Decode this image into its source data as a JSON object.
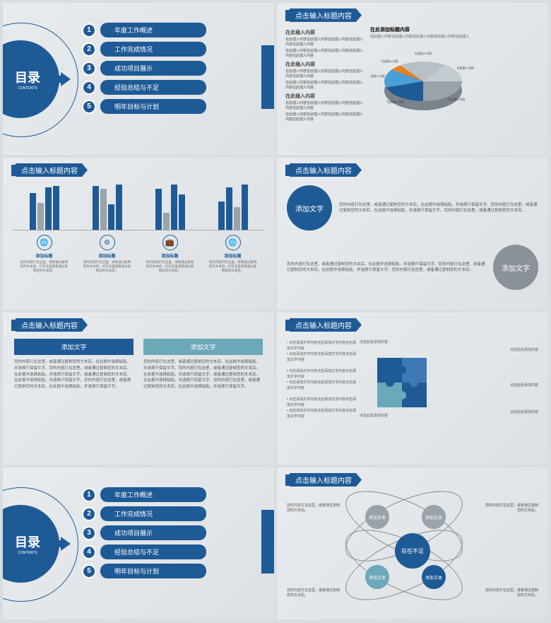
{
  "colors": {
    "primary": "#1e5a96",
    "gray": "#9aa2aa",
    "teal": "#6ba8b8",
    "lightblue": "#4a9fd8",
    "orange": "#e67e22",
    "bg": "#e8ebed"
  },
  "toc": {
    "title": "目录",
    "subtitle": "CONTENTS",
    "items": [
      {
        "num": "1",
        "label": "年度工作概述"
      },
      {
        "num": "2",
        "label": "工作完成情况"
      },
      {
        "num": "3",
        "label": "成功项目展示"
      },
      {
        "num": "4",
        "label": "经验总结与不足"
      },
      {
        "num": "5",
        "label": "明年目标与计划"
      }
    ]
  },
  "slide_title": "点击输入标题内容",
  "pie": {
    "left_title": "在此插入内容",
    "left_para": "在此插入内容在此插入内容在此插入内容在此插入内容在此插入内容",
    "right_title": "在此添加标题内容",
    "right_sub": "在此插入内容在此插入内容在此插入内容在此插入内容在此插入",
    "slices": [
      {
        "label": "在此插入内容",
        "color": "#9aa2aa",
        "value": 25
      },
      {
        "label": "在此插入内容",
        "color": "#1e5a96",
        "value": 20
      },
      {
        "label": "在此插入内容",
        "color": "#4a9fd8",
        "value": 15
      },
      {
        "label": "在此插入内容",
        "color": "#e67e22",
        "value": 5
      },
      {
        "label": "在此插入内容",
        "color": "#b8bfc5",
        "value": 20
      },
      {
        "label": "在此插入内容",
        "color": "#c5ccd1",
        "value": 15
      }
    ]
  },
  "bars": {
    "groups": [
      [
        {
          "h": 52,
          "c": "#1e5a96"
        },
        {
          "h": 38,
          "c": "#9aa2aa"
        },
        {
          "h": 60,
          "c": "#1e5a96"
        },
        {
          "h": 62,
          "c": "#1e5a96"
        }
      ],
      [
        {
          "h": 62,
          "c": "#1e5a96"
        },
        {
          "h": 58,
          "c": "#9aa2aa"
        },
        {
          "h": 36,
          "c": "#1e5a96"
        },
        {
          "h": 64,
          "c": "#1e5a96"
        }
      ],
      [
        {
          "h": 58,
          "c": "#1e5a96"
        },
        {
          "h": 24,
          "c": "#9aa2aa"
        },
        {
          "h": 64,
          "c": "#1e5a96"
        },
        {
          "h": 50,
          "c": "#1e5a96"
        }
      ],
      [
        {
          "h": 40,
          "c": "#1e5a96"
        },
        {
          "h": 60,
          "c": "#1e5a96"
        },
        {
          "h": 32,
          "c": "#9aa2aa"
        },
        {
          "h": 64,
          "c": "#1e5a96"
        }
      ]
    ],
    "icons": [
      {
        "glyph": "🌐",
        "title": "添加标题",
        "text": "您的内容打在这里，或者通过复制您的文本后，打在这里或者通过复制您的文本后。"
      },
      {
        "glyph": "⚙",
        "title": "添加标题",
        "text": "您的内容打在这里，或者通过复制您的文本后，打在这里或者通过复制您的文本后。"
      },
      {
        "glyph": "💼",
        "title": "添加标题",
        "text": "您的内容打在这里，或者通过复制您的文本后，打在这里或者通过复制您的文本后。"
      },
      {
        "glyph": "🌐",
        "title": "添加标题",
        "text": "您的内容打在这里，或者通过复制您的文本后，打在这里或者通过复制您的文本后。"
      }
    ]
  },
  "circles": {
    "label": "添加文字",
    "para": "您的内容打在这里，或者通过复制您的文本后，在此框中选择粘贴，并选择只保留文字。您的内容打在这里，或者通过复制您的文本后，在此框中选择粘贴，并选择只保留文字。您的内容打在这里，或者通过复制您的文本后。"
  },
  "twocol": {
    "head": "添加文字",
    "body": "您的内容打在这里，或者通过复制您的文本后，在此框中选择粘贴，并选择只保留文字。您的内容打在这里，或者通过复制您的文本后，在此框中选择粘贴，并选择只保留文字。或者通过复制您的文本后，在此框中选择粘贴，并选择只保留文字。您的内容打在这里，或者通过复制您的文本后，在此框中选择粘贴，并选择只保留文字。"
  },
  "puzzle": {
    "bullet": "点击添加文字内容点击添加文字内容点击添加文字内容",
    "annot": "点击此处添加内容"
  },
  "venn": {
    "center": "存在不足",
    "node": "添加文本",
    "text": "您的内容打在这里，或者通过复制您的文本后。"
  }
}
